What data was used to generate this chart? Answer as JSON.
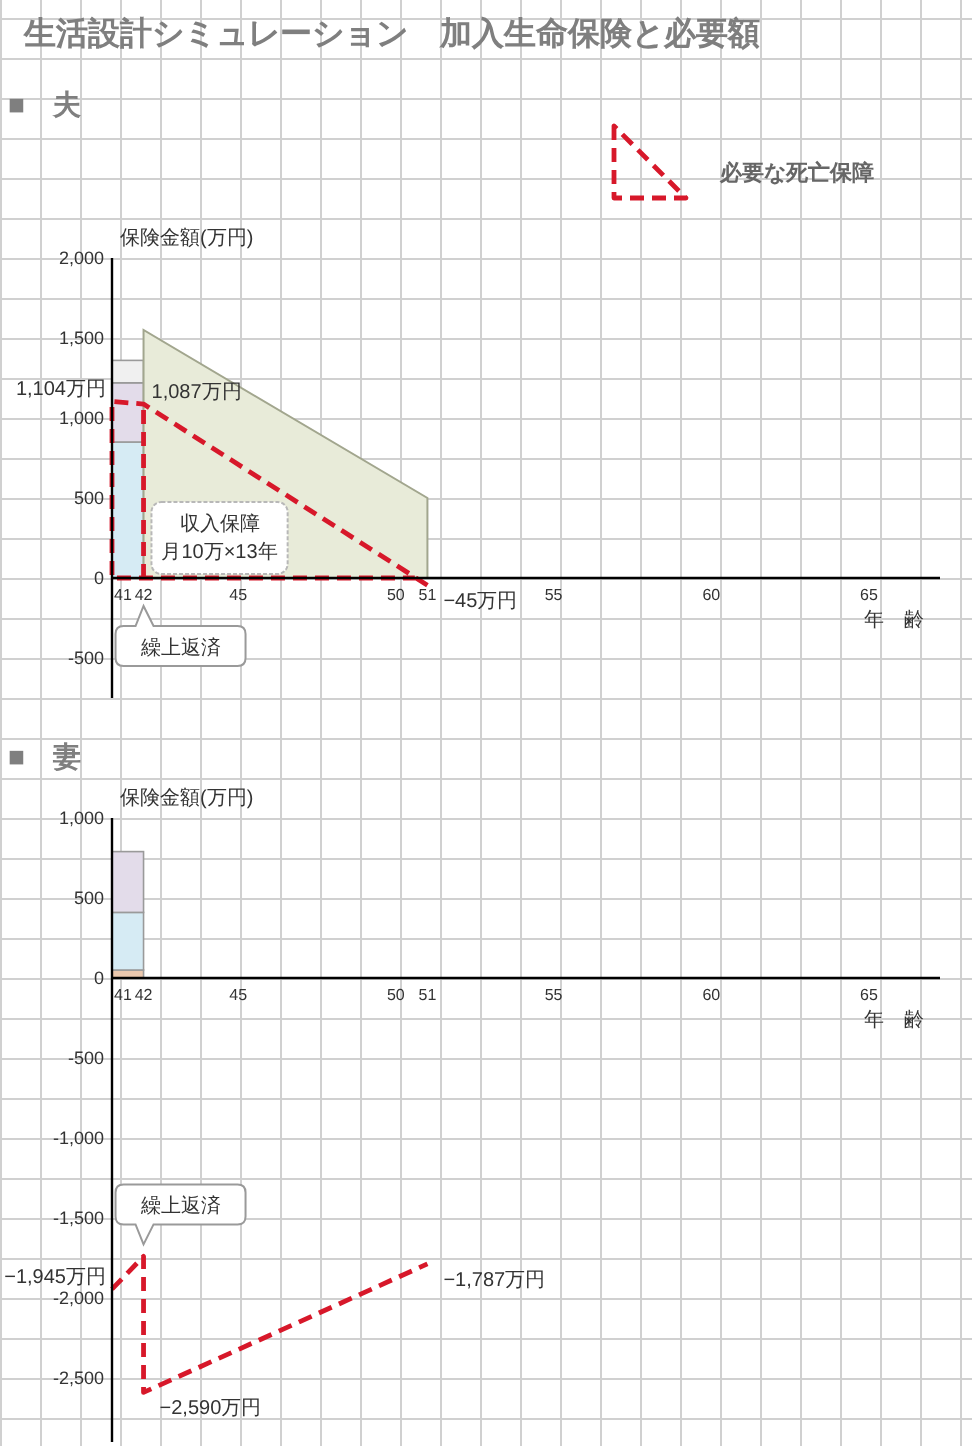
{
  "chart_data": [
    {
      "type": "bar",
      "title": "生活設計シミュレーション　加入生命保険と必要額",
      "subtitle": "■　夫",
      "ylabel": "保険金額(万円)",
      "xlabel": "年　齢",
      "legend": "top right",
      "xlim": [
        41,
        67.25
      ],
      "xticks": [
        41,
        42,
        45,
        50,
        51,
        55,
        60,
        65
      ],
      "ylim": [
        -750,
        2000
      ],
      "yticks": [
        -500,
        0,
        500,
        {
          "value": 1000,
          "label": "1,000"
        },
        {
          "value": 1500,
          "label": "1,500"
        },
        {
          "value": 2000,
          "label": "2,000"
        }
      ],
      "series": [
        {
          "color": "#d6ebf4",
          "x": [
            41
          ],
          "base": [
            0
          ],
          "values": [
            850
          ]
        },
        {
          "color": "#e3dcea",
          "x": [
            41
          ],
          "base": [
            850
          ],
          "values": [
            370
          ]
        },
        {
          "color": "#f0f0f0",
          "x": [
            41
          ],
          "base": [
            1220
          ],
          "values": [
            140
          ]
        },
        {
          "type": "area",
          "color": "#e8ebd9",
          "x": [
            42,
            51
          ],
          "values": [
            1550,
            500
          ]
        },
        {
          "type": "line",
          "name": "必要な死亡保障",
          "color": "#d7182a",
          "line_style": "dashed",
          "x": [
            51,
            42,
            41,
            41,
            50.6
          ],
          "values": [
            -45,
            1087,
            1104,
            0,
            0
          ],
          "value_labels": [
            "−45万円",
            "1,087万円",
            "1,104万円",
            null,
            null
          ]
        },
        {
          "type": "line",
          "color": "#d7182a",
          "line_style": "dashed",
          "x": [
            42,
            42
          ],
          "values": [
            0,
            1087
          ]
        }
      ],
      "annotations": [
        "収入保障",
        "月10万×13年",
        {
          "text": "繰上返済",
          "x": 42,
          "y": 0
        }
      ]
    },
    {
      "type": "bar",
      "title": "■　妻",
      "ylabel": "保険金額(万円)",
      "xlabel": "年　齢",
      "xlim": [
        41,
        67.25
      ],
      "xticks": [
        41,
        42,
        45,
        50,
        51,
        55,
        60,
        65
      ],
      "ylim": [
        -2900,
        1000
      ],
      "yticks": [
        {
          "value": -2500,
          "label": "-2,500"
        },
        {
          "value": -2000,
          "label": "-2,000"
        },
        {
          "value": -1500,
          "label": "-1,500"
        },
        {
          "value": -1000,
          "label": "-1,000"
        },
        -500,
        0,
        500,
        {
          "value": 1000,
          "label": "1,000"
        }
      ],
      "series": [
        {
          "color": "#ebc8ae",
          "x": [
            41
          ],
          "base": [
            0
          ],
          "values": [
            50
          ]
        },
        {
          "color": "#d6ebf4",
          "x": [
            41
          ],
          "base": [
            50
          ],
          "values": [
            360
          ]
        },
        {
          "color": "#e3dcea",
          "x": [
            41
          ],
          "base": [
            410
          ],
          "values": [
            380
          ]
        },
        {
          "type": "line",
          "color": "#d7182a",
          "line_style": "dashed",
          "x": [
            41,
            42,
            42,
            51
          ],
          "values": [
            -1945,
            -1740,
            -2590,
            -1787
          ],
          "value_labels": [
            "−1,945万円",
            null,
            "−2,590万円",
            "−1,787万円"
          ]
        }
      ],
      "annotations": [
        {
          "text": "繰上返済",
          "x": 42,
          "y": -1740
        }
      ]
    }
  ]
}
